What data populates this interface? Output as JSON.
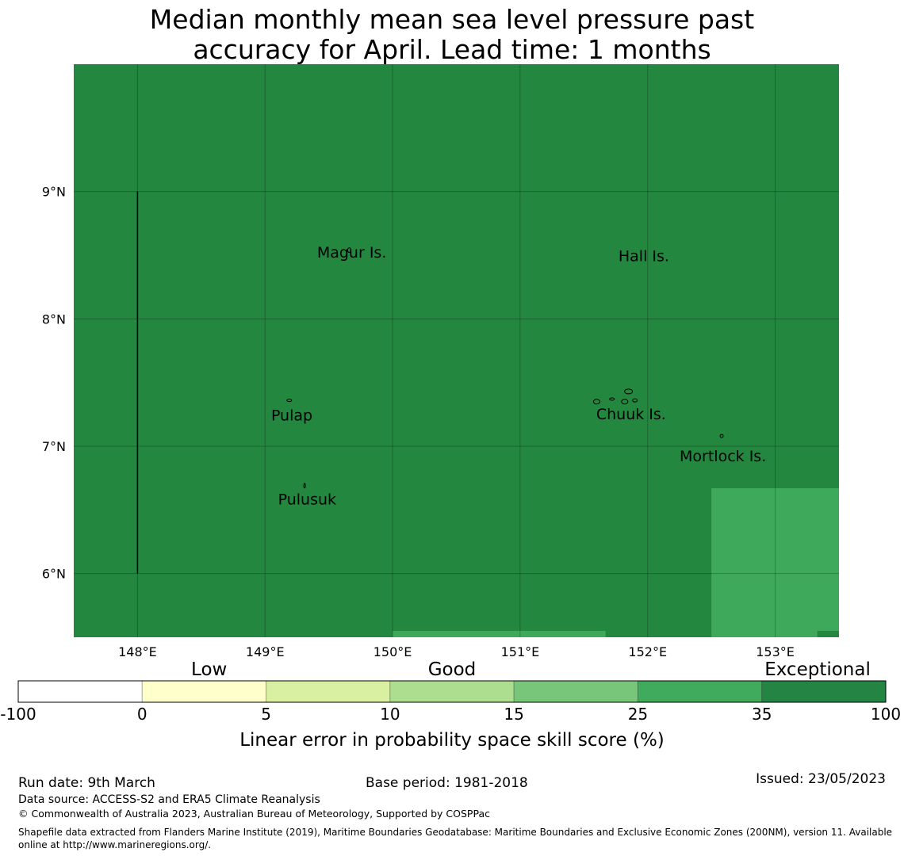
{
  "title": {
    "line1": "Median monthly mean sea level pressure past",
    "line2": "accuracy for April. Lead time: 1 months"
  },
  "map": {
    "background_color": "#23873f",
    "lon_ticks": [
      148,
      149,
      150,
      151,
      152,
      153
    ],
    "lon_tick_labels": [
      "148°E",
      "149°E",
      "150°E",
      "151°E",
      "152°E",
      "153°E"
    ],
    "lat_ticks": [
      6,
      7,
      8,
      9
    ],
    "lat_tick_labels": [
      "6°N",
      "7°N",
      "8°N",
      "9°N"
    ],
    "lon_range": [
      147.5,
      153.5
    ],
    "lat_range": [
      5.5,
      10.0
    ],
    "lighter_regions": [
      {
        "lon": [
          152.5,
          153.5
        ],
        "lat": [
          5.55,
          6.67
        ],
        "color": "#3fa95b"
      },
      {
        "lon": [
          150.0,
          151.67
        ],
        "lat": [
          5.5,
          5.55
        ],
        "color": "#3fa95b"
      },
      {
        "lon": [
          152.5,
          153.33
        ],
        "lat": [
          5.5,
          5.55
        ],
        "color": "#3fa95b"
      }
    ],
    "boundary_line": {
      "lon": 148.0,
      "lat": [
        6.0,
        9.0
      ]
    },
    "place_labels": [
      {
        "name": "Magur Is.",
        "lon": 149.68,
        "lat": 8.52
      },
      {
        "name": "Hall Is.",
        "lon": 151.97,
        "lat": 8.49
      },
      {
        "name": "Pulap",
        "lon": 149.21,
        "lat": 7.24
      },
      {
        "name": "Chuuk Is.",
        "lon": 151.87,
        "lat": 7.25
      },
      {
        "name": "Mortlock Is.",
        "lon": 152.59,
        "lat": 6.92
      },
      {
        "name": "Pulusuk",
        "lon": 149.33,
        "lat": 6.58
      }
    ]
  },
  "legend": {
    "categories": [
      "Low",
      "Good",
      "Exceptional"
    ],
    "boundaries": [
      "-100",
      "0",
      "5",
      "10",
      "15",
      "25",
      "35",
      "100"
    ],
    "colors": [
      "#ffffff",
      "#ffffcc",
      "#d9f0a3",
      "#addd8e",
      "#78c679",
      "#41ab5d",
      "#238443"
    ],
    "label": "Linear error in probability space skill score (%)"
  },
  "footer": {
    "run_date": "Run date: 9th March",
    "base_period": "Base period: 1981-2018",
    "issued": "Issued: 23/05/2023",
    "data_source": "Data source: ACCESS-S2 and ERA5 Climate Reanalysis",
    "copyright": "© Commonwealth of Australia 2023, Australian Bureau of Meteorology, Supported by COSPPac",
    "shapefile_line1": "Shapefile data extracted from Flanders Marine Institute (2019), Maritime Boundaries Geodatabase: Maritime Boundaries and Exclusive Economic Zones (200NM), version 11. Available",
    "shapefile_line2": "online at http://www.marineregions.org/."
  }
}
